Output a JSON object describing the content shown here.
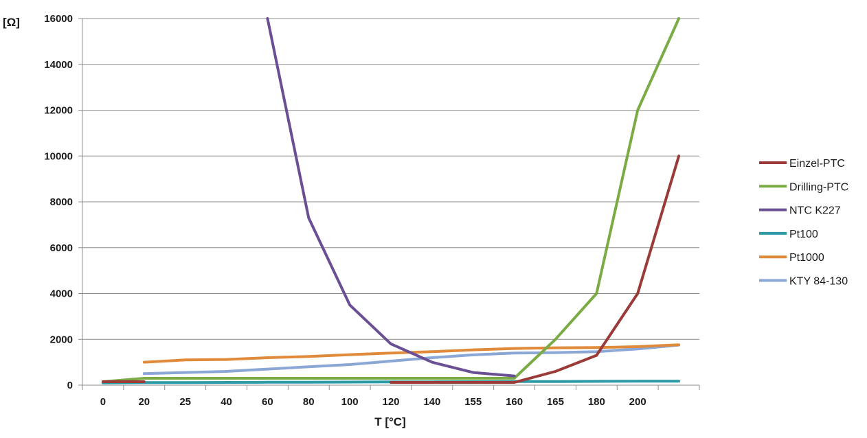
{
  "chart_data": {
    "type": "line",
    "ylabel": "[Ω]",
    "xlabel": "T  [°C]",
    "categories": [
      "0",
      "20",
      "25",
      "40",
      "60",
      "80",
      "100",
      "120",
      "140",
      "155",
      "160",
      "165",
      "180",
      "200",
      ""
    ],
    "ylim": [
      0,
      16000
    ],
    "yticks": [
      0,
      2000,
      4000,
      6000,
      8000,
      10000,
      12000,
      14000,
      16000
    ],
    "grid": true,
    "legend_position": "right",
    "series": [
      {
        "name": "Einzel-PTC",
        "color": "#9b3b38",
        "values": [
          150,
          150,
          null,
          null,
          null,
          null,
          null,
          120,
          120,
          120,
          120,
          600,
          1300,
          4000,
          10000
        ]
      },
      {
        "name": "Drilling-PTC",
        "color": "#7aab44",
        "values": [
          150,
          300,
          300,
          300,
          300,
          300,
          300,
          300,
          300,
          300,
          300,
          2000,
          4000,
          12000,
          16000
        ]
      },
      {
        "name": "NTC K227",
        "color": "#6a4f94",
        "values": [
          null,
          null,
          null,
          null,
          16000,
          7300,
          3500,
          1800,
          1000,
          550,
          400,
          null,
          null,
          null,
          null
        ]
      },
      {
        "name": "Pt100",
        "color": "#2e9aa6",
        "values": [
          100,
          110,
          115,
          120,
          125,
          130,
          135,
          140,
          145,
          150,
          155,
          160,
          165,
          170,
          175
        ]
      },
      {
        "name": "Pt1000",
        "color": "#e08a3c",
        "values": [
          null,
          1000,
          1100,
          1120,
          1200,
          1250,
          1330,
          1400,
          1460,
          1540,
          1600,
          1630,
          1640,
          1680,
          1760
        ]
      },
      {
        "name": "KTY 84-130",
        "color": "#8aa7d6",
        "values": [
          null,
          500,
          550,
          600,
          700,
          800,
          900,
          1050,
          1200,
          1320,
          1400,
          1420,
          1460,
          1580,
          1750
        ]
      }
    ]
  }
}
